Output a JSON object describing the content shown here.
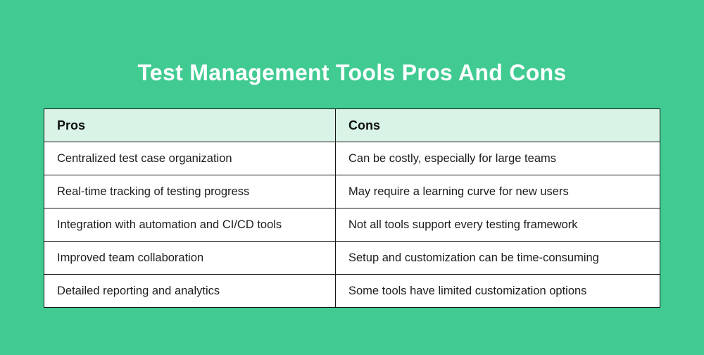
{
  "title": "Test Management Tools Pros And Cons",
  "colors": {
    "background": "#41cb92",
    "header_bg": "#d9f3e7",
    "border": "#161616",
    "title_text": "#ffffff",
    "cell_text": "#1d1d1d",
    "cell_bg": "#ffffff"
  },
  "table": {
    "headers": [
      "Pros",
      "Cons"
    ],
    "rows": [
      [
        "Centralized test case organization",
        "Can be costly, especially for large teams"
      ],
      [
        "Real-time tracking of testing progress",
        "May require a learning curve for new users"
      ],
      [
        "Integration with automation and CI/CD tools",
        "Not all tools support every testing framework"
      ],
      [
        "Improved team collaboration",
        "Setup and customization can be time-consuming"
      ],
      [
        "Detailed reporting and analytics",
        "Some tools have limited customization options"
      ]
    ]
  },
  "chart_data": {
    "type": "table",
    "title": "Test Management Tools Pros And Cons",
    "columns": [
      "Pros",
      "Cons"
    ],
    "rows": [
      [
        "Centralized test case organization",
        "Can be costly, especially for large teams"
      ],
      [
        "Real-time tracking of testing progress",
        "May require a learning curve for new users"
      ],
      [
        "Integration with automation and CI/CD tools",
        "Not all tools support every testing framework"
      ],
      [
        "Improved team collaboration",
        "Setup and customization can be time-consuming"
      ],
      [
        "Detailed reporting and analytics",
        "Some tools have limited customization options"
      ]
    ],
    "legend_position": "none",
    "grid": "table-borders"
  }
}
